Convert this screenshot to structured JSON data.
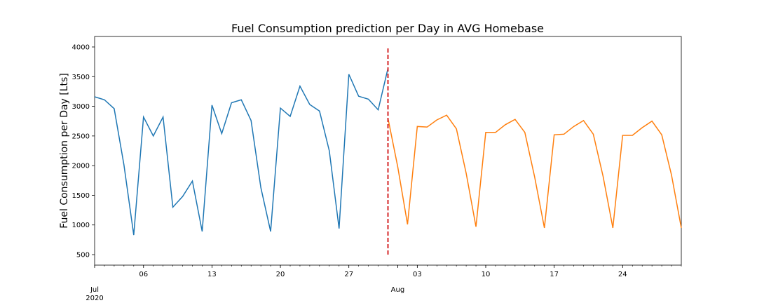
{
  "chart_data": {
    "type": "line",
    "title": "Fuel Consumption prediction per Day in AVG Homebase",
    "y_label": "Fuel Consumption per Day [Lts]",
    "x": [
      "2020-07-01",
      "2020-07-02",
      "2020-07-03",
      "2020-07-04",
      "2020-07-05",
      "2020-07-06",
      "2020-07-07",
      "2020-07-08",
      "2020-07-09",
      "2020-07-10",
      "2020-07-11",
      "2020-07-12",
      "2020-07-13",
      "2020-07-14",
      "2020-07-15",
      "2020-07-16",
      "2020-07-17",
      "2020-07-18",
      "2020-07-19",
      "2020-07-20",
      "2020-07-21",
      "2020-07-22",
      "2020-07-23",
      "2020-07-24",
      "2020-07-25",
      "2020-07-26",
      "2020-07-27",
      "2020-07-28",
      "2020-07-29",
      "2020-07-30",
      "2020-07-31",
      "2020-08-01",
      "2020-08-02",
      "2020-08-03",
      "2020-08-04",
      "2020-08-05",
      "2020-08-06",
      "2020-08-07",
      "2020-08-08",
      "2020-08-09",
      "2020-08-10",
      "2020-08-11",
      "2020-08-12",
      "2020-08-13",
      "2020-08-14",
      "2020-08-15",
      "2020-08-16",
      "2020-08-17",
      "2020-08-18",
      "2020-08-19",
      "2020-08-20",
      "2020-08-21",
      "2020-08-22",
      "2020-08-23",
      "2020-08-24",
      "2020-08-25",
      "2020-08-26",
      "2020-08-27",
      "2020-08-28",
      "2020-08-29",
      "2020-08-30"
    ],
    "series": [
      {
        "color": "#1f77b4",
        "values": [
          3160,
          3110,
          2960,
          2010,
          830,
          2820,
          2500,
          2820,
          1300,
          1480,
          1740,
          890,
          3020,
          2540,
          3060,
          3110,
          2760,
          1630,
          890,
          2970,
          2830,
          3340,
          3030,
          2920,
          2250,
          940,
          3540,
          3170,
          3120,
          2940,
          3640,
          null,
          null,
          null,
          null,
          null,
          null,
          null,
          null,
          null,
          null,
          null,
          null,
          null,
          null,
          null,
          null,
          null,
          null,
          null,
          null,
          null,
          null,
          null,
          null,
          null,
          null,
          null,
          null,
          null,
          null
        ]
      },
      {
        "color": "#ff7f0e",
        "values": [
          null,
          null,
          null,
          null,
          null,
          null,
          null,
          null,
          null,
          null,
          null,
          null,
          null,
          null,
          null,
          null,
          null,
          null,
          null,
          null,
          null,
          null,
          null,
          null,
          null,
          null,
          null,
          null,
          null,
          null,
          2800,
          1980,
          1010,
          2660,
          2650,
          2770,
          2850,
          2620,
          1870,
          970,
          2560,
          2560,
          2690,
          2780,
          2560,
          1810,
          950,
          2520,
          2530,
          2660,
          2760,
          2530,
          1820,
          950,
          2510,
          2510,
          2640,
          2750,
          2520,
          1840,
          950
        ]
      }
    ],
    "xlim": [
      "2020-07-01",
      "2020-08-30"
    ],
    "xticks": [
      {
        "value": "2020-07-01",
        "label": "Jul"
      },
      {
        "value": "2020-07-06",
        "label": "06"
      },
      {
        "value": "2020-07-13",
        "label": "13"
      },
      {
        "value": "2020-07-20",
        "label": "20"
      },
      {
        "value": "2020-07-27",
        "label": "27"
      },
      {
        "value": "2020-08-01",
        "label": "Aug"
      },
      {
        "value": "2020-08-03",
        "label": "03"
      },
      {
        "value": "2020-08-10",
        "label": "10"
      },
      {
        "value": "2020-08-17",
        "label": "17"
      },
      {
        "value": "2020-08-24",
        "label": "24"
      }
    ],
    "x_year_label": "2020",
    "ylim": [
      323,
      4177
    ],
    "yticks": [
      500,
      1000,
      1500,
      2000,
      2500,
      3000,
      3500,
      4000
    ],
    "vline": {
      "x": "2020-07-31",
      "ymin": 500,
      "ymax": 4000,
      "color": "#d62728"
    },
    "grid": false
  }
}
